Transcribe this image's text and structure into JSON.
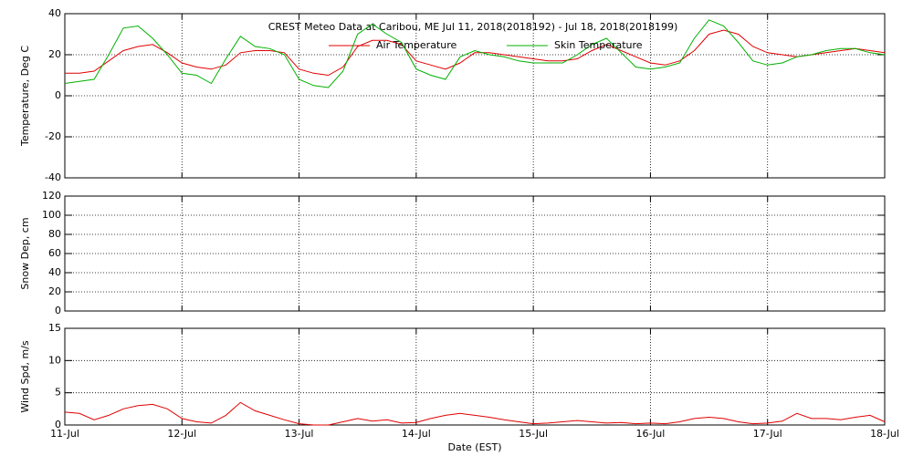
{
  "chart_data": [
    {
      "type": "line",
      "title": "CREST Meteo Data at Caribou, ME   Jul 11, 2018(2018192) - Jul 18, 2018(2018199)",
      "y_label": "Temperature, Deg C",
      "x": [
        0,
        0.125,
        0.25,
        0.375,
        0.5,
        0.625,
        0.75,
        0.875,
        1,
        1.125,
        1.25,
        1.375,
        1.5,
        1.625,
        1.75,
        1.875,
        2,
        2.125,
        2.25,
        2.375,
        2.5,
        2.625,
        2.75,
        2.875,
        3,
        3.125,
        3.25,
        3.375,
        3.5,
        3.625,
        3.75,
        3.875,
        4,
        4.125,
        4.25,
        4.375,
        4.5,
        4.625,
        4.75,
        4.875,
        5,
        5.125,
        5.25,
        5.375,
        5.5,
        5.625,
        5.75,
        5.875,
        6,
        6.125,
        6.25,
        6.375,
        6.5,
        6.625,
        6.75,
        6.875,
        7
      ],
      "series": [
        {
          "name": "Air Temperature",
          "color": "#e00000",
          "values": [
            11,
            11,
            12,
            17,
            22,
            24,
            25,
            21,
            16,
            14,
            13,
            15,
            21,
            22,
            22,
            21,
            13,
            11,
            10,
            14,
            24,
            27,
            27,
            25,
            17,
            15,
            13,
            16,
            21,
            21,
            20,
            19,
            18,
            17,
            17,
            18,
            22,
            25,
            22,
            19,
            16,
            15,
            17,
            22,
            30,
            32,
            30,
            24,
            21,
            20,
            19,
            20,
            21,
            22,
            23,
            22,
            21
          ]
        },
        {
          "name": "Skin Temperature",
          "color": "#00b000",
          "values": [
            6,
            7,
            8,
            20,
            33,
            34,
            28,
            20,
            11,
            10,
            6,
            18,
            29,
            24,
            23,
            20,
            8,
            5,
            4,
            12,
            30,
            35,
            30,
            26,
            13,
            10,
            8,
            19,
            22,
            20,
            19,
            17,
            16,
            16,
            16,
            20,
            25,
            28,
            21,
            14,
            13,
            14,
            16,
            28,
            37,
            34,
            26,
            17,
            15,
            16,
            19,
            20,
            22,
            23,
            23,
            21,
            20
          ]
        }
      ],
      "xlim": [
        0,
        7
      ],
      "xticks": [
        0,
        1,
        2,
        3,
        4,
        5,
        6,
        7
      ],
      "ylim": [
        -40,
        40
      ],
      "yticks": [
        -40,
        -20,
        0,
        20,
        40
      ],
      "grid": true
    },
    {
      "type": "line",
      "y_label": "Snow Dep, cm",
      "xlim": [
        0,
        7
      ],
      "xticks": [
        0,
        1,
        2,
        3,
        4,
        5,
        6,
        7
      ],
      "ylim": [
        0,
        120
      ],
      "yticks": [
        0,
        20,
        40,
        60,
        80,
        100,
        120
      ],
      "grid": true
    },
    {
      "type": "line",
      "y_label": "Wind Spd, m/s",
      "x_label": "Date (EST)",
      "x": [
        0,
        0.125,
        0.25,
        0.375,
        0.5,
        0.625,
        0.75,
        0.875,
        1,
        1.125,
        1.25,
        1.375,
        1.5,
        1.625,
        1.75,
        1.875,
        2,
        2.125,
        2.25,
        2.375,
        2.5,
        2.625,
        2.75,
        2.875,
        3,
        3.125,
        3.25,
        3.375,
        3.5,
        3.625,
        3.75,
        3.875,
        4,
        4.125,
        4.25,
        4.375,
        4.5,
        4.625,
        4.75,
        4.875,
        5,
        5.125,
        5.25,
        5.375,
        5.5,
        5.625,
        5.75,
        5.875,
        6,
        6.125,
        6.25,
        6.375,
        6.5,
        6.625,
        6.75,
        6.875,
        7
      ],
      "series": [
        {
          "name": "Wind Speed",
          "color": "#e00000",
          "values": [
            2,
            1.8,
            0.8,
            1.5,
            2.5,
            3,
            3.2,
            2.5,
            1,
            0.5,
            0.3,
            1.5,
            3.5,
            2.2,
            1.5,
            0.8,
            0.2,
            0,
            0,
            0.5,
            1,
            0.6,
            0.8,
            0.3,
            0.4,
            1,
            1.5,
            1.8,
            1.5,
            1.2,
            0.8,
            0.5,
            0.2,
            0.3,
            0.5,
            0.7,
            0.5,
            0.3,
            0.4,
            0.2,
            0.3,
            0.2,
            0.5,
            1,
            1.2,
            1,
            0.5,
            0.2,
            0.3,
            0.6,
            1.8,
            1,
            1,
            0.8,
            1.2,
            1.5,
            0.5
          ]
        }
      ],
      "xlim": [
        0,
        7
      ],
      "xticks": [
        {
          "value": 0,
          "label": "11-Jul"
        },
        {
          "value": 1,
          "label": "12-Jul"
        },
        {
          "value": 2,
          "label": "13-Jul"
        },
        {
          "value": 3,
          "label": "14-Jul"
        },
        {
          "value": 4,
          "label": "15-Jul"
        },
        {
          "value": 5,
          "label": "16-Jul"
        },
        {
          "value": 6,
          "label": "17-Jul"
        },
        {
          "value": 7,
          "label": "18-Jul"
        }
      ],
      "ylim": [
        0,
        15
      ],
      "yticks": [
        0,
        5,
        10,
        15
      ],
      "grid": true
    }
  ]
}
